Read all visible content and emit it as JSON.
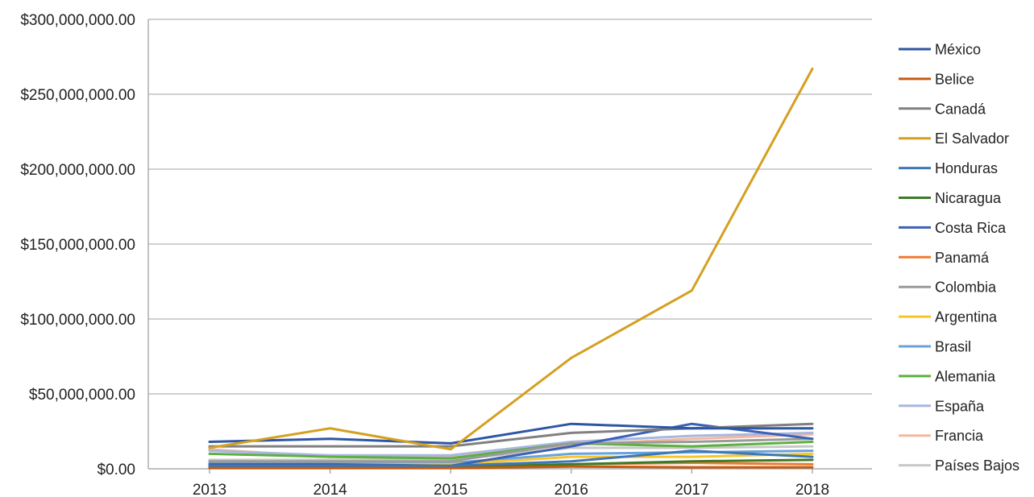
{
  "chart_data": {
    "type": "line",
    "title": "",
    "xlabel": "",
    "ylabel": "",
    "x": [
      "2013",
      "2014",
      "2015",
      "2016",
      "2017",
      "2018"
    ],
    "ylim": [
      0,
      300000000
    ],
    "yticks": [
      0,
      50000000,
      100000000,
      150000000,
      200000000,
      250000000,
      300000000
    ],
    "ytick_labels": [
      "$0.00",
      "$50,000,000.00",
      "$100,000,000.00",
      "$150,000,000.00",
      "$200,000,000.00",
      "$250,000,000.00",
      "$300,000,000.00"
    ],
    "grid": true,
    "legend_position": "right",
    "series": [
      {
        "name": "México",
        "color": "#2e56a3",
        "values": [
          18000000,
          20000000,
          17000000,
          30000000,
          27000000,
          27000000
        ]
      },
      {
        "name": "Belice",
        "color": "#c55a11",
        "values": [
          500000,
          500000,
          500000,
          1500000,
          1000000,
          1000000
        ]
      },
      {
        "name": "Canadá",
        "color": "#808080",
        "values": [
          15000000,
          15000000,
          15000000,
          24000000,
          27000000,
          30000000
        ]
      },
      {
        "name": "El Salvador",
        "color": "#d4a020",
        "values": [
          14000000,
          27000000,
          13000000,
          74000000,
          119000000,
          267000000
        ]
      },
      {
        "name": "Honduras",
        "color": "#3d78b5",
        "values": [
          2000000,
          2000000,
          2000000,
          5000000,
          12000000,
          8000000
        ]
      },
      {
        "name": "Nicaragua",
        "color": "#3d7a25",
        "values": [
          1000000,
          1000000,
          1000000,
          3000000,
          5000000,
          6000000
        ]
      },
      {
        "name": "Costa Rica",
        "color": "#3a62b5",
        "values": [
          3000000,
          3000000,
          2000000,
          15000000,
          30000000,
          20000000
        ]
      },
      {
        "name": "Panamá",
        "color": "#ee7a33",
        "values": [
          1500000,
          1500000,
          1500000,
          3000000,
          4000000,
          3000000
        ]
      },
      {
        "name": "Colombia",
        "color": "#9a9a9a",
        "values": [
          5000000,
          5000000,
          5000000,
          17000000,
          18000000,
          20000000
        ]
      },
      {
        "name": "Argentina",
        "color": "#f7c52a",
        "values": [
          3000000,
          3000000,
          3000000,
          8000000,
          8000000,
          10000000
        ]
      },
      {
        "name": "Brasil",
        "color": "#69a2dc",
        "values": [
          4000000,
          4000000,
          4000000,
          10000000,
          11000000,
          12000000
        ]
      },
      {
        "name": "Alemania",
        "color": "#5cb040",
        "values": [
          10000000,
          8000000,
          7000000,
          17000000,
          15000000,
          18000000
        ]
      },
      {
        "name": "España",
        "color": "#a8b6e0",
        "values": [
          12000000,
          9000000,
          9000000,
          18000000,
          22000000,
          24000000
        ]
      },
      {
        "name": "Francia",
        "color": "#f3b8a0",
        "values": [
          13000000,
          8000000,
          8000000,
          16000000,
          20000000,
          23000000
        ]
      },
      {
        "name": "Países Bajos",
        "color": "#c8c8c8",
        "values": [
          6000000,
          6000000,
          6000000,
          14000000,
          14000000,
          15000000
        ]
      }
    ]
  }
}
